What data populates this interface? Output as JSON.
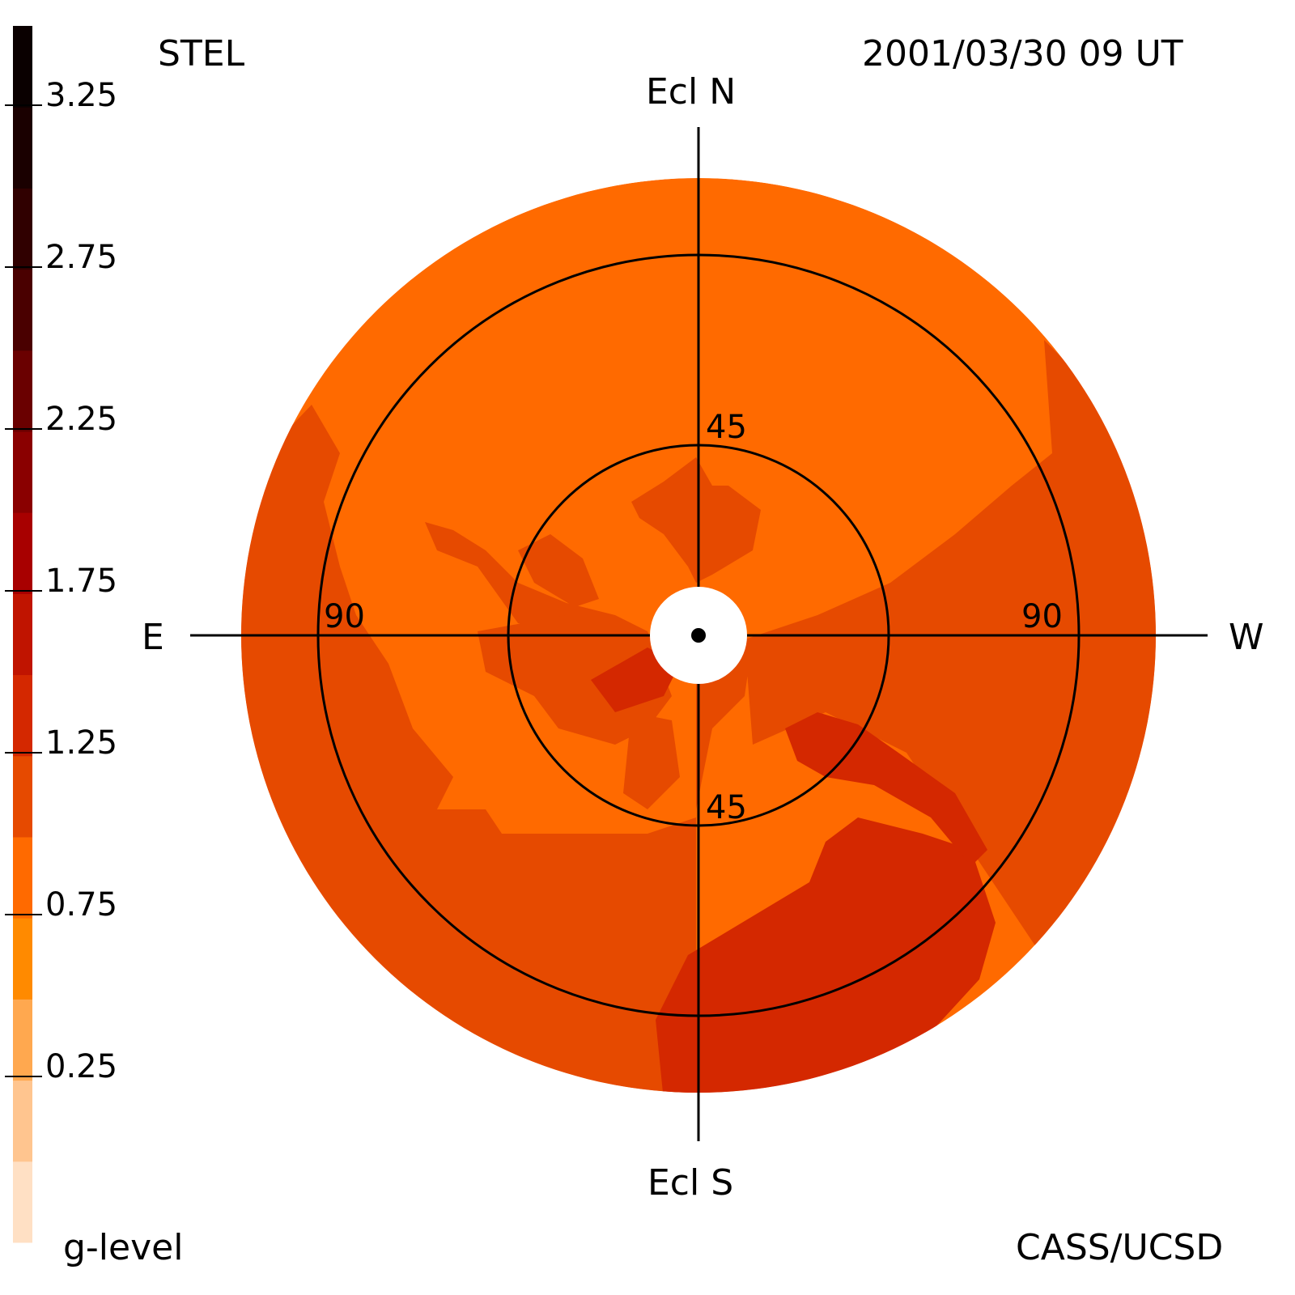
{
  "header": {
    "station": "STEL",
    "timestamp": "2001/03/30 09 UT"
  },
  "footer": {
    "variable": "g-level",
    "credit": "CASS/UCSD"
  },
  "compass": {
    "north": "Ecl N",
    "south": "Ecl S",
    "east": "E",
    "west": "W"
  },
  "rings": {
    "inner_top": "45",
    "inner_bottom": "45",
    "outer_left": "90",
    "outer_right": "90"
  },
  "colorbar": {
    "tick_labels": [
      "3.25",
      "2.75",
      "2.25",
      "1.75",
      "1.25",
      "0.75",
      "0.25"
    ],
    "band_colors": [
      "#ffe0c4",
      "#ffc58f",
      "#ffa84f",
      "#ff8a00",
      "#ff6a00",
      "#e64a00",
      "#d42800",
      "#c01400",
      "#a80000",
      "#8a0000",
      "#6a0000",
      "#4a0000",
      "#300000",
      "#1a0000",
      "#0a0000"
    ]
  },
  "map_colors": {
    "light_orange": "#ff6a00",
    "mid_orange": "#e64a00",
    "dark_orange": "#d42800",
    "background": "#ffffff",
    "lines": "#000000"
  }
}
